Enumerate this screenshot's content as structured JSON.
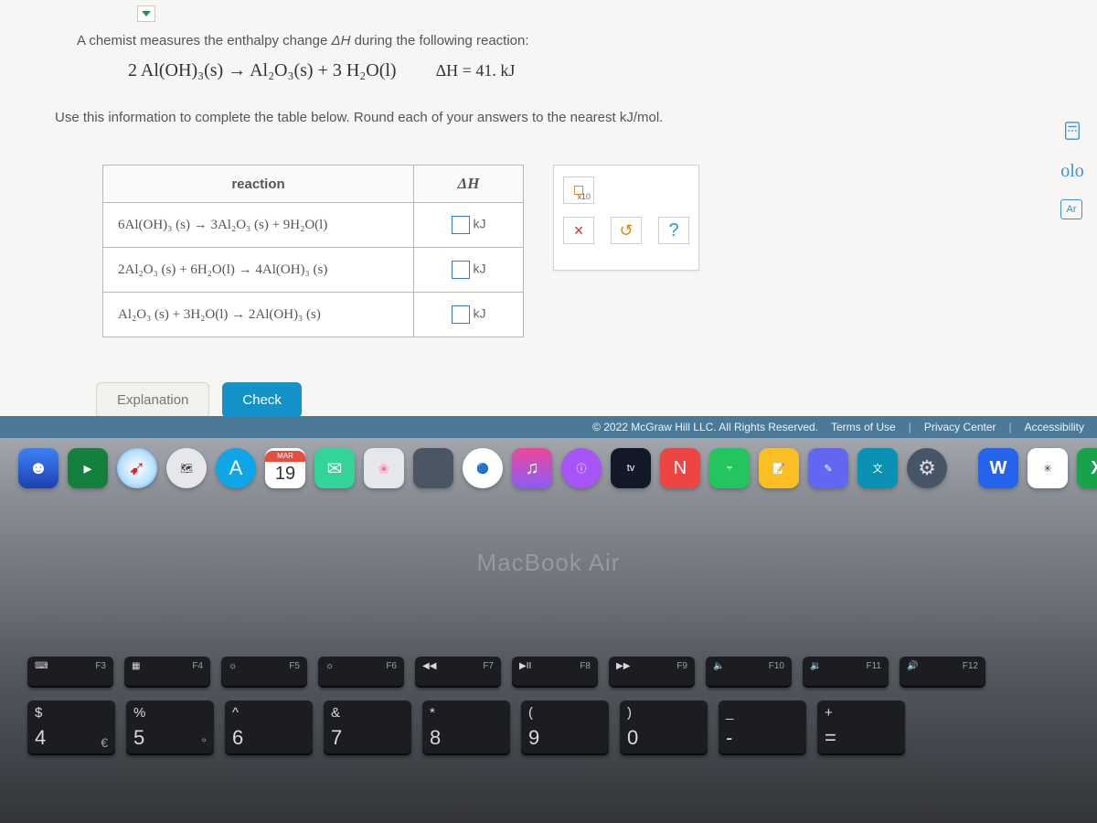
{
  "problem": {
    "intro_before": "A chemist measures the enthalpy change ",
    "intro_dH": "ΔH",
    "intro_after": " during the following reaction:",
    "equation": "2 Al(OH)₃(s) → Al₂O₃(s) + 3 H₂O(l)",
    "dH_eq": "ΔH = 41. kJ",
    "instruction": "Use this information to complete the table below. Round each of your answers to the nearest kJ/mol.",
    "table": {
      "col_reaction": "reaction",
      "col_dH": "ΔH",
      "rows": [
        {
          "rxn": "6Al(OH)₃ (s) → 3Al₂O₃ (s) + 9H₂O(l)",
          "unit": "kJ"
        },
        {
          "rxn": "2Al₂O₃ (s) + 6H₂O(l) → 4Al(OH)₃ (s)",
          "unit": "kJ"
        },
        {
          "rxn": "Al₂O₃ (s) + 3H₂O(l) → 2Al(OH)₃ (s)",
          "unit": "kJ"
        }
      ]
    },
    "keypad": {
      "x10_label": "x10",
      "close": "×",
      "reset": "↺",
      "help": "?"
    },
    "buttons": {
      "explanation": "Explanation",
      "check": "Check"
    }
  },
  "right_tools": {
    "calculator": "calculator",
    "highlighter": "olo",
    "periodic": "Ar"
  },
  "footer": {
    "copyright": "© 2022 McGraw Hill LLC. All Rights Reserved.",
    "terms": "Terms of Use",
    "privacy": "Privacy Center",
    "access": "Accessibility"
  },
  "dock": {
    "calendar": {
      "month": "MAR",
      "day": "19"
    },
    "tv": "tv",
    "word": "W",
    "excel": "X"
  },
  "macbook": "MacBook Air",
  "keyboard": {
    "fnrow": [
      {
        "sym": "⌨",
        "fn": "F3"
      },
      {
        "sym": "▦",
        "fn": "F4"
      },
      {
        "sym": "☼",
        "fn": "F5"
      },
      {
        "sym": "☼",
        "fn": "F6"
      },
      {
        "sym": "◀◀",
        "fn": "F7"
      },
      {
        "sym": "▶II",
        "fn": "F8"
      },
      {
        "sym": "▶▶",
        "fn": "F9"
      },
      {
        "sym": "🔈",
        "fn": "F10"
      },
      {
        "sym": "🔉",
        "fn": "F11"
      },
      {
        "sym": "🔊",
        "fn": "F12"
      }
    ],
    "numrow": [
      {
        "top": "$",
        "bot": "4",
        "alt": "€"
      },
      {
        "top": "%",
        "bot": "5",
        "alt": "°"
      },
      {
        "top": "^",
        "bot": "6",
        "alt": ""
      },
      {
        "top": "&",
        "bot": "7",
        "alt": ""
      },
      {
        "top": "*",
        "bot": "8",
        "alt": ""
      },
      {
        "top": "(",
        "bot": "9",
        "alt": ""
      },
      {
        "top": ")",
        "bot": "0",
        "alt": ""
      },
      {
        "top": "_",
        "bot": "-",
        "alt": ""
      },
      {
        "top": "+",
        "bot": "=",
        "alt": ""
      }
    ]
  },
  "colors": {
    "card_bg": "#f7f6f4",
    "accent": "#1292c9",
    "footer_bg": "#4b7a99",
    "table_border": "#b8b8b8",
    "answer_box_border": "#3a7bbf"
  }
}
